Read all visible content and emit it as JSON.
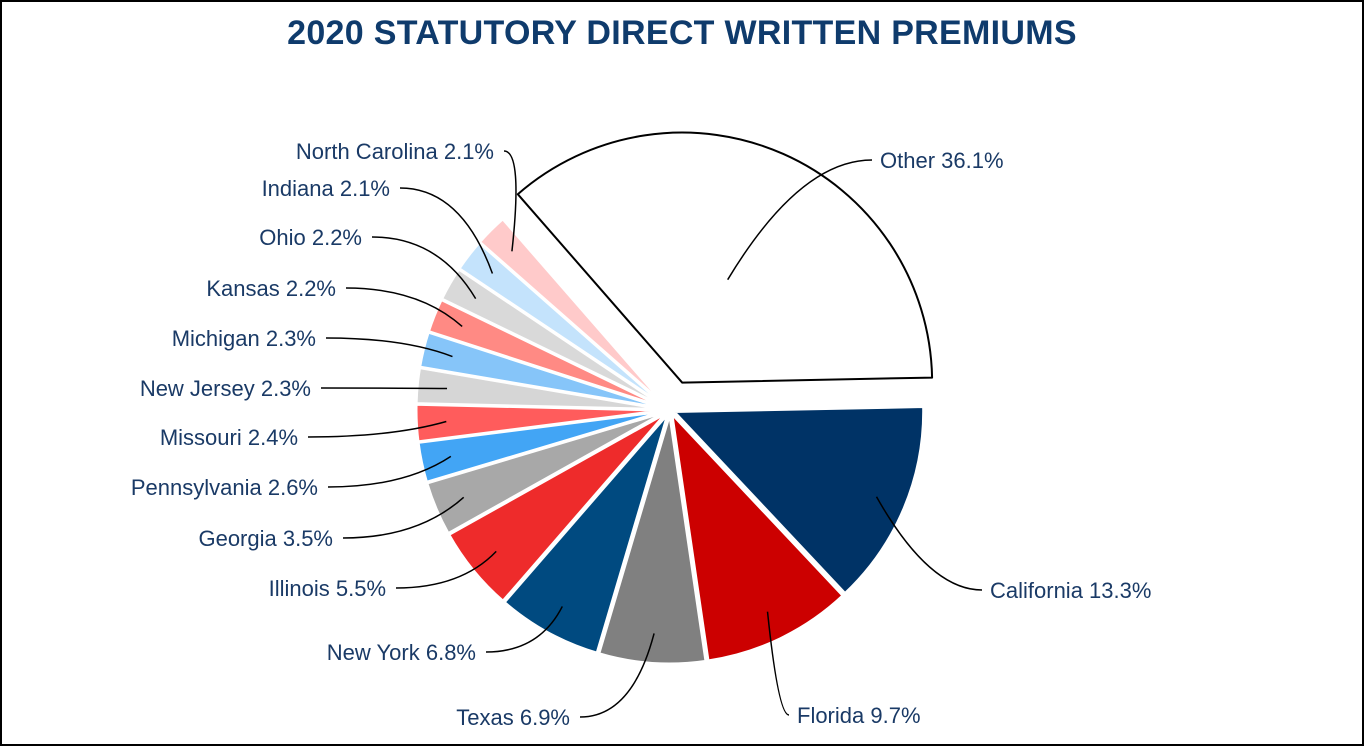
{
  "colors": {
    "title": "#0f3b6c",
    "label": "#1a3a66",
    "slice_outline": "#ffffff",
    "leader": "#000000"
  },
  "chart_data": {
    "type": "pie",
    "title": "2020 STATUTORY DIRECT WRITTEN PREMIUMS",
    "unit": "%",
    "slices": [
      {
        "label": "California",
        "value": 13.3,
        "display": "California 13.3%",
        "color": "#003366"
      },
      {
        "label": "Florida",
        "value": 9.7,
        "display": "Florida 9.7%",
        "color": "#cc0000"
      },
      {
        "label": "Texas",
        "value": 6.9,
        "display": "Texas 6.9%",
        "color": "#808080"
      },
      {
        "label": "New York",
        "value": 6.8,
        "display": "New York 6.8%",
        "color": "#004a80"
      },
      {
        "label": "Illinois",
        "value": 5.5,
        "display": "Illinois 5.5%",
        "color": "#ee2b2b"
      },
      {
        "label": "Georgia",
        "value": 3.5,
        "display": "Georgia 3.5%",
        "color": "#a8a8a8"
      },
      {
        "label": "Pennsylvania",
        "value": 2.6,
        "display": "Pennsylvania 2.6%",
        "color": "#42a5f5"
      },
      {
        "label": "Missouri",
        "value": 2.4,
        "display": "Missouri 2.4%",
        "color": "#ff5c5c"
      },
      {
        "label": "New Jersey",
        "value": 2.3,
        "display": "New Jersey 2.3%",
        "color": "#d6d6d6"
      },
      {
        "label": "Michigan",
        "value": 2.3,
        "display": "Michigan 2.3%",
        "color": "#86c5f9"
      },
      {
        "label": "Kansas",
        "value": 2.2,
        "display": "Kansas 2.2%",
        "color": "#ff8a84"
      },
      {
        "label": "Ohio",
        "value": 2.2,
        "display": "Ohio 2.2%",
        "color": "#d9d9d9"
      },
      {
        "label": "Indiana",
        "value": 2.1,
        "display": "Indiana 2.1%",
        "color": "#c4e3fc"
      },
      {
        "label": "North Carolina",
        "value": 2.1,
        "display": "North Carolina 2.1%",
        "color": "#ffcaca"
      },
      {
        "label": "Other",
        "value": 36.1,
        "display": "Other 36.1%",
        "color": "#ffffff",
        "outlined": true,
        "exploded": true
      }
    ],
    "legend": "none",
    "data_labels": "outside-with-leader-lines"
  }
}
